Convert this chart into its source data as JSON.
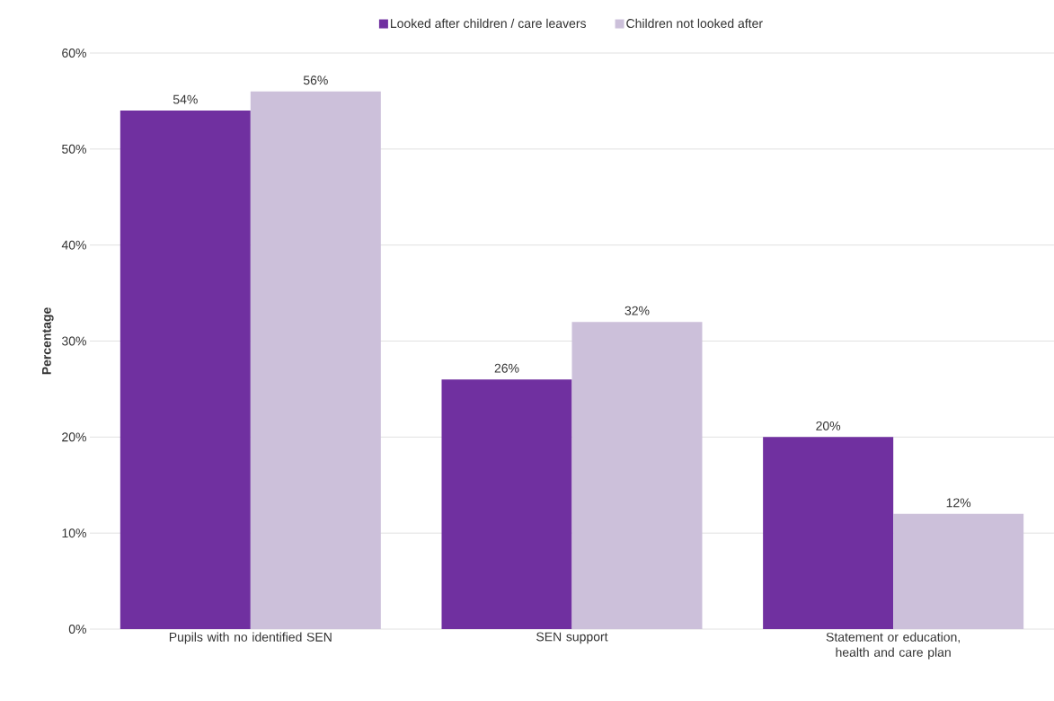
{
  "chart_data": {
    "type": "bar",
    "ylabel": "Percentage",
    "categories": [
      "Pupils with no identified SEN",
      "SEN support",
      "Statement or education, health and care plan"
    ],
    "series": [
      {
        "name": "Looked after children / care leavers",
        "color": "#7030a0",
        "values": [
          54,
          26,
          20
        ],
        "value_labels": [
          "54%",
          "26%",
          "20%"
        ]
      },
      {
        "name": "Children not looked after",
        "color": "#ccc0da",
        "values": [
          56,
          32,
          12
        ],
        "value_labels": [
          "56%",
          "32%",
          "12%"
        ]
      }
    ],
    "ylim": [
      0,
      60
    ],
    "yticks": [
      {
        "value": 0,
        "label": "0%"
      },
      {
        "value": 10,
        "label": "10%"
      },
      {
        "value": 20,
        "label": "20%"
      },
      {
        "value": 30,
        "label": "30%"
      },
      {
        "value": 40,
        "label": "40%"
      },
      {
        "value": 50,
        "label": "50%"
      },
      {
        "value": 60,
        "label": "60%"
      }
    ],
    "grid": "y",
    "legend": "top"
  }
}
